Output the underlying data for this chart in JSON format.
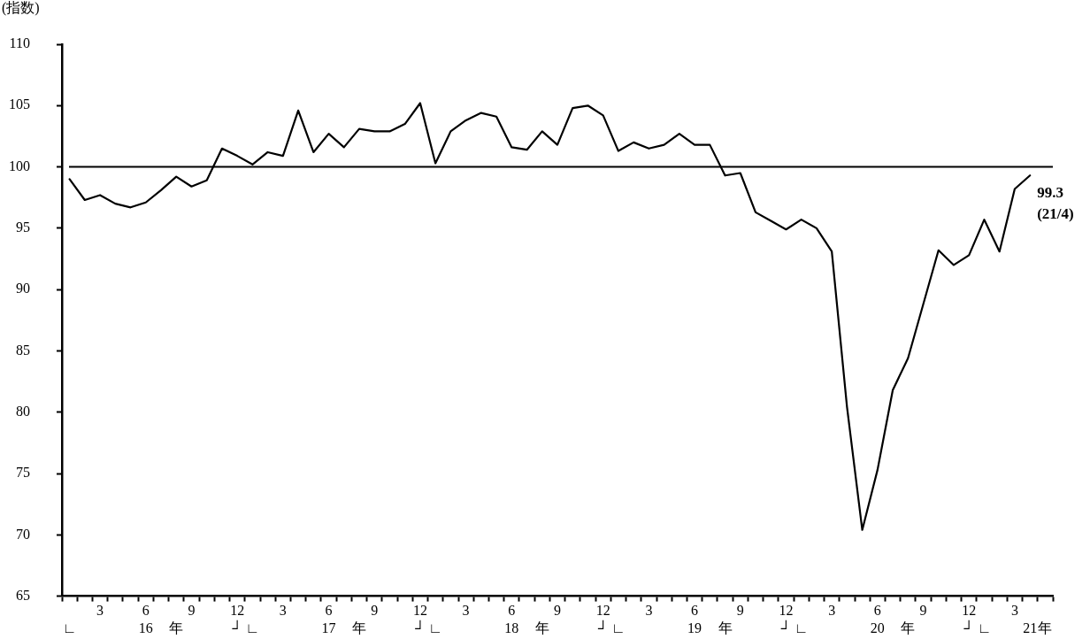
{
  "chart_data": {
    "type": "line",
    "ylabel": "(指数)",
    "categories": [
      "\n∟",
      null,
      "3",
      null,
      null,
      "6\n16",
      null,
      "\n年",
      "9",
      null,
      null,
      "12\n┘",
      "\n∟",
      null,
      "3",
      null,
      null,
      "6\n17",
      null,
      "\n年",
      "9",
      null,
      null,
      "12\n┘",
      "\n∟",
      null,
      "3",
      null,
      null,
      "6\n18",
      null,
      "\n年",
      "9",
      null,
      null,
      "12\n┘",
      "\n∟",
      null,
      "3",
      null,
      null,
      "6\n19",
      null,
      "\n年",
      "9",
      null,
      null,
      "12\n┘",
      "\n∟",
      null,
      "3",
      null,
      null,
      "6\n20",
      null,
      "\n年",
      "9",
      null,
      null,
      "12\n┘",
      "\n∟",
      null,
      "3",
      "\n21",
      "\n年"
    ],
    "series": [
      {
        "color": "#000000",
        "values": [
          99.0,
          97.3,
          97.7,
          97.0,
          96.7,
          97.1,
          98.1,
          99.2,
          98.4,
          98.9,
          101.5,
          100.9,
          100.2,
          101.2,
          100.9,
          104.6,
          101.2,
          102.7,
          101.6,
          103.1,
          102.9,
          102.9,
          103.5,
          105.2,
          100.3,
          102.9,
          103.8,
          104.4,
          104.1,
          101.6,
          101.4,
          102.9,
          101.8,
          104.8,
          105.0,
          104.2,
          101.3,
          102.0,
          101.5,
          101.8,
          102.7,
          101.8,
          101.8,
          99.3,
          99.5,
          96.3,
          95.6,
          94.9,
          95.7,
          95.0,
          93.1,
          80.4,
          70.4,
          75.3,
          81.8,
          84.4,
          88.8,
          93.2,
          92.0,
          92.8,
          95.7,
          93.1,
          98.2,
          99.3,
          null
        ]
      }
    ],
    "ylim": [
      65,
      110
    ],
    "yticks": [
      65,
      70,
      75,
      80,
      85,
      90,
      95,
      100,
      105,
      110
    ],
    "ref_lines": [
      {
        "axis": "y",
        "value": 100,
        "color": "#000000"
      }
    ],
    "annotations": [
      "99.3\n(21/4)"
    ],
    "grid": false,
    "legend": false,
    "marker": "none",
    "line_style": "solid"
  }
}
